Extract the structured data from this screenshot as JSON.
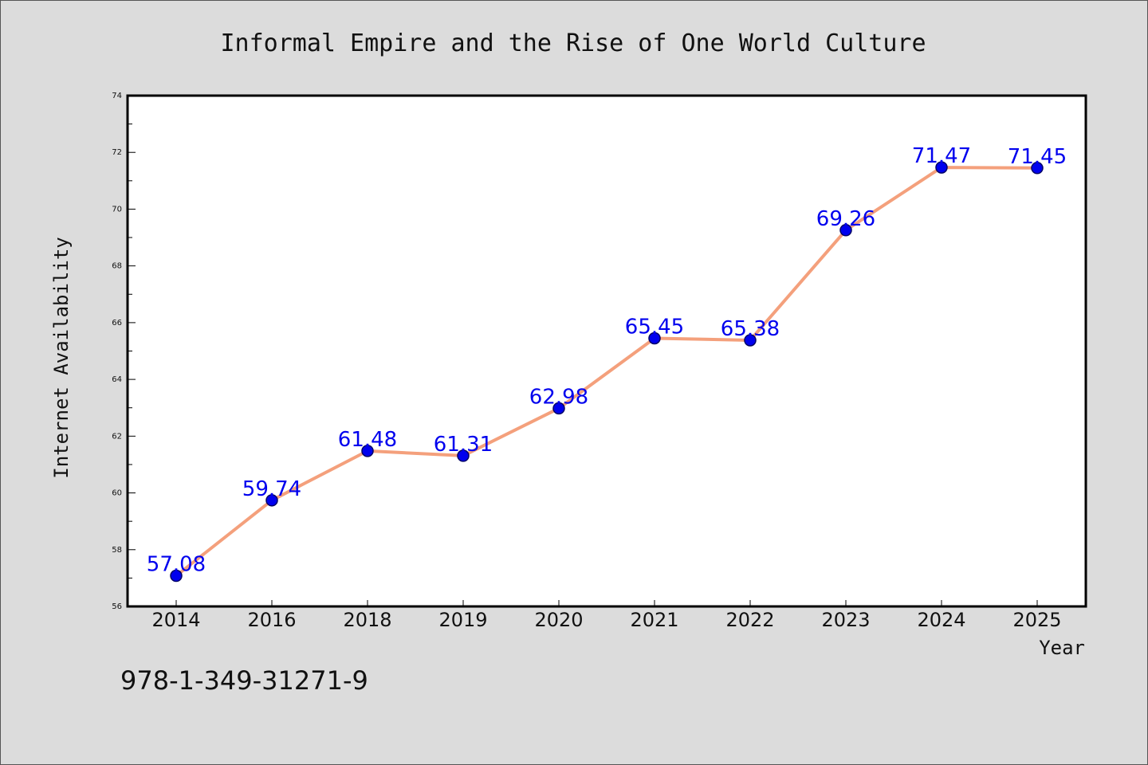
{
  "chart_data": {
    "type": "line",
    "title": "Informal Empire and the Rise of One World Culture",
    "xlabel": "Year",
    "ylabel": "Internet Availability",
    "categories": [
      "2014",
      "2016",
      "2018",
      "2019",
      "2020",
      "2021",
      "2022",
      "2023",
      "2024",
      "2025"
    ],
    "series": [
      {
        "values": [
          57.08,
          59.74,
          61.48,
          61.31,
          62.98,
          65.45,
          65.38,
          69.26,
          71.47,
          71.45
        ],
        "data_labels": [
          "57.08",
          "59.74",
          "61.48",
          "61.31",
          "62.98",
          "65.45",
          "65.38",
          "69.26",
          "71.47",
          "71.45"
        ]
      }
    ],
    "ylim": [
      56,
      74
    ],
    "yticks": [
      "56",
      "58",
      "60",
      "62",
      "64",
      "66",
      "68",
      "70",
      "72",
      "74"
    ],
    "grid": false,
    "legend": "none",
    "colors": {
      "line": "#f4a07c",
      "marker": "#0000ee",
      "marker_edge": "#000066",
      "label": "#0000ee"
    }
  },
  "footer_text": "978-1-349-31271-9"
}
